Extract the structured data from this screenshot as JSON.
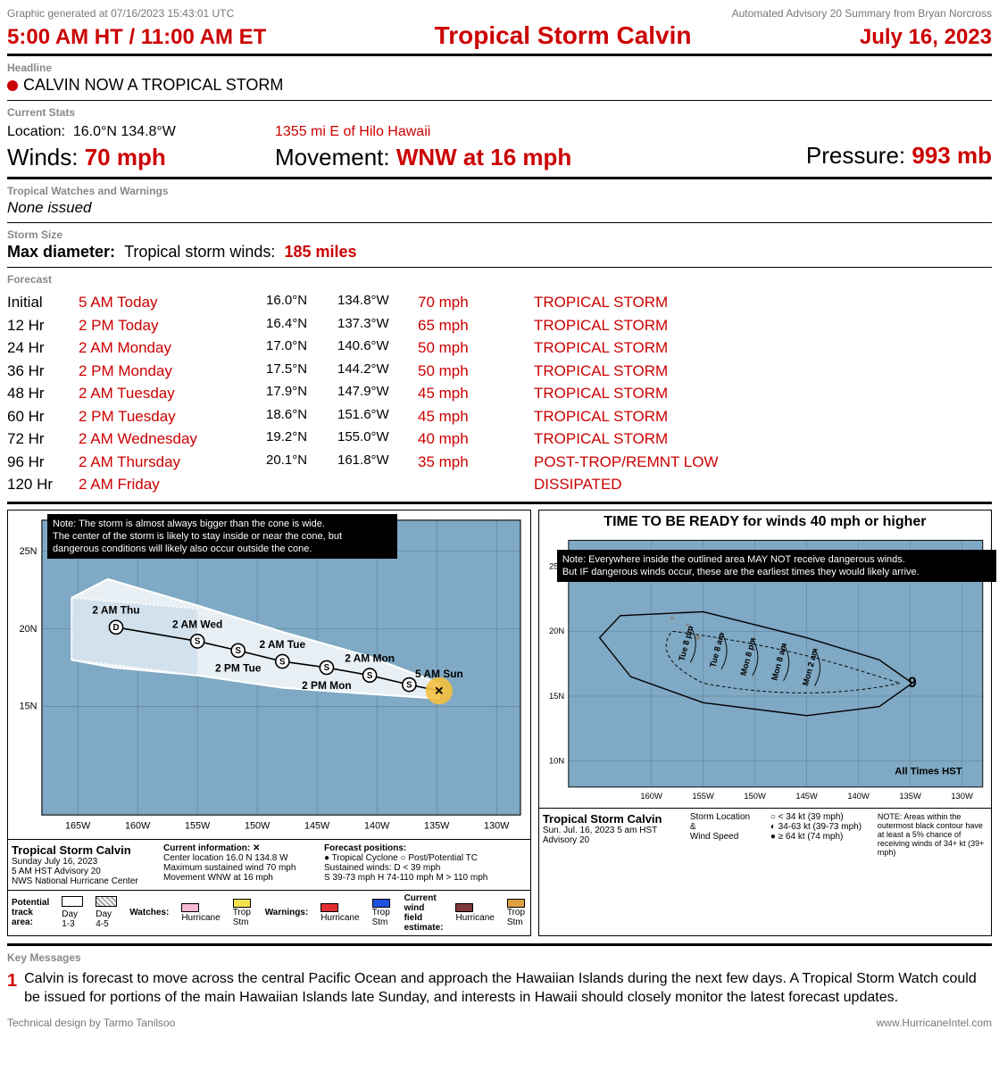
{
  "meta": {
    "generated": "Graphic generated at 07/16/2023 15:43:01 UTC",
    "source": "Automated Advisory 20 Summary from Bryan Norcross",
    "time_left": "5:00 AM HT / 11:00 AM ET",
    "storm_name": "Tropical Storm Calvin",
    "date": "July 16, 2023",
    "credit": "Technical design by Tarmo Tanilsoo",
    "site": "www.HurricaneIntel.com"
  },
  "colors": {
    "red": "#cc0000",
    "grey": "#888888",
    "ocean": "#7fa9c4",
    "cone": "#e8f0f5",
    "black": "#000000"
  },
  "headline": {
    "label": "Headline",
    "text": "CALVIN NOW A TROPICAL STORM"
  },
  "stats": {
    "label": "Current Stats",
    "location_label": "Location:",
    "location": "16.0°N 134.8°W",
    "distance": "1355 mi E of Hilo Hawaii",
    "winds_label": "Winds:",
    "winds": "70 mph",
    "movement_label": "Movement:",
    "movement": "WNW at 16 mph",
    "pressure_label": "Pressure:",
    "pressure": "993 mb"
  },
  "watches": {
    "label": "Tropical Watches and Warnings",
    "text": "None issued"
  },
  "size": {
    "label": "Storm Size",
    "diameter_label": "Max diameter:",
    "type": "Tropical storm winds:",
    "value": "185 miles"
  },
  "forecast": {
    "label": "Forecast",
    "rows": [
      {
        "hr": "Initial",
        "time": "5 AM Today",
        "lat": "16.0°N",
        "lon": "134.8°W",
        "wind": "70 mph",
        "cat": "TROPICAL STORM"
      },
      {
        "hr": "12 Hr",
        "time": "2 PM Today",
        "lat": "16.4°N",
        "lon": "137.3°W",
        "wind": "65 mph",
        "cat": "TROPICAL STORM"
      },
      {
        "hr": "24 Hr",
        "time": "2 AM Monday",
        "lat": "17.0°N",
        "lon": "140.6°W",
        "wind": "50 mph",
        "cat": "TROPICAL STORM"
      },
      {
        "hr": "36 Hr",
        "time": "2 PM Monday",
        "lat": "17.5°N",
        "lon": "144.2°W",
        "wind": "50 mph",
        "cat": "TROPICAL STORM"
      },
      {
        "hr": "48 Hr",
        "time": "2 AM Tuesday",
        "lat": "17.9°N",
        "lon": "147.9°W",
        "wind": "45 mph",
        "cat": "TROPICAL STORM"
      },
      {
        "hr": "60 Hr",
        "time": "2 PM Tuesday",
        "lat": "18.6°N",
        "lon": "151.6°W",
        "wind": "45 mph",
        "cat": "TROPICAL STORM"
      },
      {
        "hr": "72 Hr",
        "time": "2 AM Wednesday",
        "lat": "19.2°N",
        "lon": "155.0°W",
        "wind": "40 mph",
        "cat": "TROPICAL STORM"
      },
      {
        "hr": "96 Hr",
        "time": "2 AM Thursday",
        "lat": "20.1°N",
        "lon": "161.8°W",
        "wind": "35 mph",
        "cat": "POST-TROP/REMNT LOW"
      },
      {
        "hr": "120 Hr",
        "time": "2 AM Friday",
        "lat": "",
        "lon": "",
        "wind": "",
        "cat": "DISSIPATED"
      }
    ]
  },
  "map1": {
    "note": "Note: The storm is almost always bigger than the cone is wide.\nThe center of the storm is likely to stay inside or near the cone, but\ndangerous conditions will likely also occur outside the cone.",
    "xlim": [
      -168,
      -128
    ],
    "ylim": [
      8,
      27
    ],
    "xticks": [
      -165,
      -160,
      -155,
      -150,
      -145,
      -140,
      -135,
      -130
    ],
    "xticklabels": [
      "165W",
      "160W",
      "155W",
      "150W",
      "145W",
      "140W",
      "135W",
      "130W"
    ],
    "yticks": [
      15,
      20,
      25
    ],
    "yticklabels": [
      "15N",
      "20N",
      "25N"
    ],
    "grid_color": "#5a7a8f",
    "cone_points_upper": [
      [
        -134.8,
        16.5
      ],
      [
        -140.6,
        18.2
      ],
      [
        -147.9,
        19.8
      ],
      [
        -155.0,
        21.5
      ],
      [
        -162.5,
        23.2
      ],
      [
        -165.5,
        22.0
      ]
    ],
    "cone_points_lower": [
      [
        -165.5,
        18.0
      ],
      [
        -162.0,
        17.5
      ],
      [
        -155.0,
        17.0
      ],
      [
        -147.9,
        16.2
      ],
      [
        -140.6,
        15.8
      ],
      [
        -134.8,
        15.5
      ]
    ],
    "track": [
      {
        "lon": -134.8,
        "lat": 16.0,
        "label": "5 AM Sun",
        "sym": "x",
        "current": true
      },
      {
        "lon": -137.3,
        "lat": 16.4,
        "label": "",
        "sym": "S"
      },
      {
        "lon": -140.6,
        "lat": 17.0,
        "label": "2 AM Mon",
        "sym": "S"
      },
      {
        "lon": -144.2,
        "lat": 17.5,
        "label": "2 PM Mon",
        "sym": "S",
        "below": true
      },
      {
        "lon": -147.9,
        "lat": 17.9,
        "label": "2 AM Tue",
        "sym": "S"
      },
      {
        "lon": -151.6,
        "lat": 18.6,
        "label": "2 PM Tue",
        "sym": "S",
        "below": true
      },
      {
        "lon": -155.0,
        "lat": 19.2,
        "label": "2 AM Wed",
        "sym": "S"
      },
      {
        "lon": -161.8,
        "lat": 20.1,
        "label": "2 AM Thu",
        "sym": "D"
      }
    ],
    "legend": {
      "title": "Tropical Storm Calvin",
      "sub1": "Sunday July 16, 2023",
      "sub2": "5 AM HST Advisory 20",
      "sub3": "NWS National Hurricane Center",
      "ci_title": "Current information: ✕",
      "ci1": "Center location 16.0 N 134.8 W",
      "ci2": "Maximum sustained wind 70 mph",
      "ci3": "Movement WNW at 16 mph",
      "fp_title": "Forecast positions:",
      "fp1": "● Tropical Cyclone   ○ Post/Potential TC",
      "fp2": "Sustained winds:      D < 39 mph",
      "fp3": "S 39-73 mph  H 74-110 mph  M > 110 mph",
      "row2_pta": "Potential track area:",
      "row2_day13": "Day 1-3",
      "row2_day45": "Day 4-5",
      "row2_watches": "Watches:",
      "row2_warnings": "Warnings:",
      "row2_cwfe": "Current wind field estimate:",
      "items": [
        "Hurricane",
        "Trop Stm",
        "Hurricane",
        "Trop Stm",
        "Hurricane",
        "Trop Stm"
      ],
      "colors": [
        "#f5b8d0",
        "#f5e050",
        "#e03030",
        "#2050e0",
        "#803838",
        "#e0a040"
      ]
    }
  },
  "map2": {
    "title": "TIME TO BE READY for winds 40 mph or higher",
    "note": "Note: Everywhere inside the outlined area MAY NOT receive dangerous winds.\nBut IF dangerous winds occur, these are the earliest times they would likely arrive.",
    "xlim": [
      -168,
      -128
    ],
    "ylim": [
      8,
      27
    ],
    "xticks": [
      -160,
      -155,
      -150,
      -145,
      -140,
      -135,
      -130
    ],
    "xticklabels": [
      "160W",
      "155W",
      "150W",
      "145W",
      "140W",
      "135W",
      "130W"
    ],
    "yticks": [
      10,
      15,
      20,
      25
    ],
    "yticklabels": [
      "10N",
      "15N",
      "20N",
      "25N"
    ],
    "contour_outer": [
      [
        -134.8,
        16.0
      ],
      [
        -138,
        14.2
      ],
      [
        -145,
        13.5
      ],
      [
        -155,
        14.5
      ],
      [
        -162,
        16.5
      ],
      [
        -165,
        19.5
      ],
      [
        -163,
        21.2
      ],
      [
        -155,
        21.5
      ],
      [
        -145,
        19.5
      ],
      [
        -138,
        17.8
      ],
      [
        -134.8,
        16.0
      ]
    ],
    "arrival_labels": [
      {
        "lon": -144,
        "lat": 17.2,
        "text": "Mon 2 am"
      },
      {
        "lon": -147,
        "lat": 17.6,
        "text": "Mon 8 am"
      },
      {
        "lon": -150,
        "lat": 18.0,
        "text": "Mon 8 pm"
      },
      {
        "lon": -153,
        "lat": 18.5,
        "text": "Tue 8 am"
      },
      {
        "lon": -156,
        "lat": 19.0,
        "text": "Tue 8 pm"
      }
    ],
    "all_times": "All Times HST",
    "legend": {
      "title": "Tropical Storm Calvin",
      "sub1": "Sun. Jul. 16, 2023  5 am HST",
      "sub2": "Advisory 20",
      "col2a": "Storm Location",
      "col2b": "&",
      "col2c": "Wind Speed",
      "col3a": "○ < 34 kt (39 mph)",
      "col3b": "◐ 34-63 kt (39-73 mph)",
      "col3c": "● ≥ 64 kt (74 mph)",
      "note": "NOTE: Areas within the outermost black contour have at least a 5% chance of receiving winds of 34+ kt (39+ mph)"
    }
  },
  "key_messages": {
    "label": "Key Messages",
    "items": [
      {
        "n": "1",
        "text": "Calvin is forecast to move across the central Pacific Ocean and approach the Hawaiian Islands during the next few days. A Tropical Storm Watch could be issued for portions of the main Hawaiian Islands late Sunday, and interests in Hawaii should closely monitor the latest forecast updates."
      }
    ]
  }
}
